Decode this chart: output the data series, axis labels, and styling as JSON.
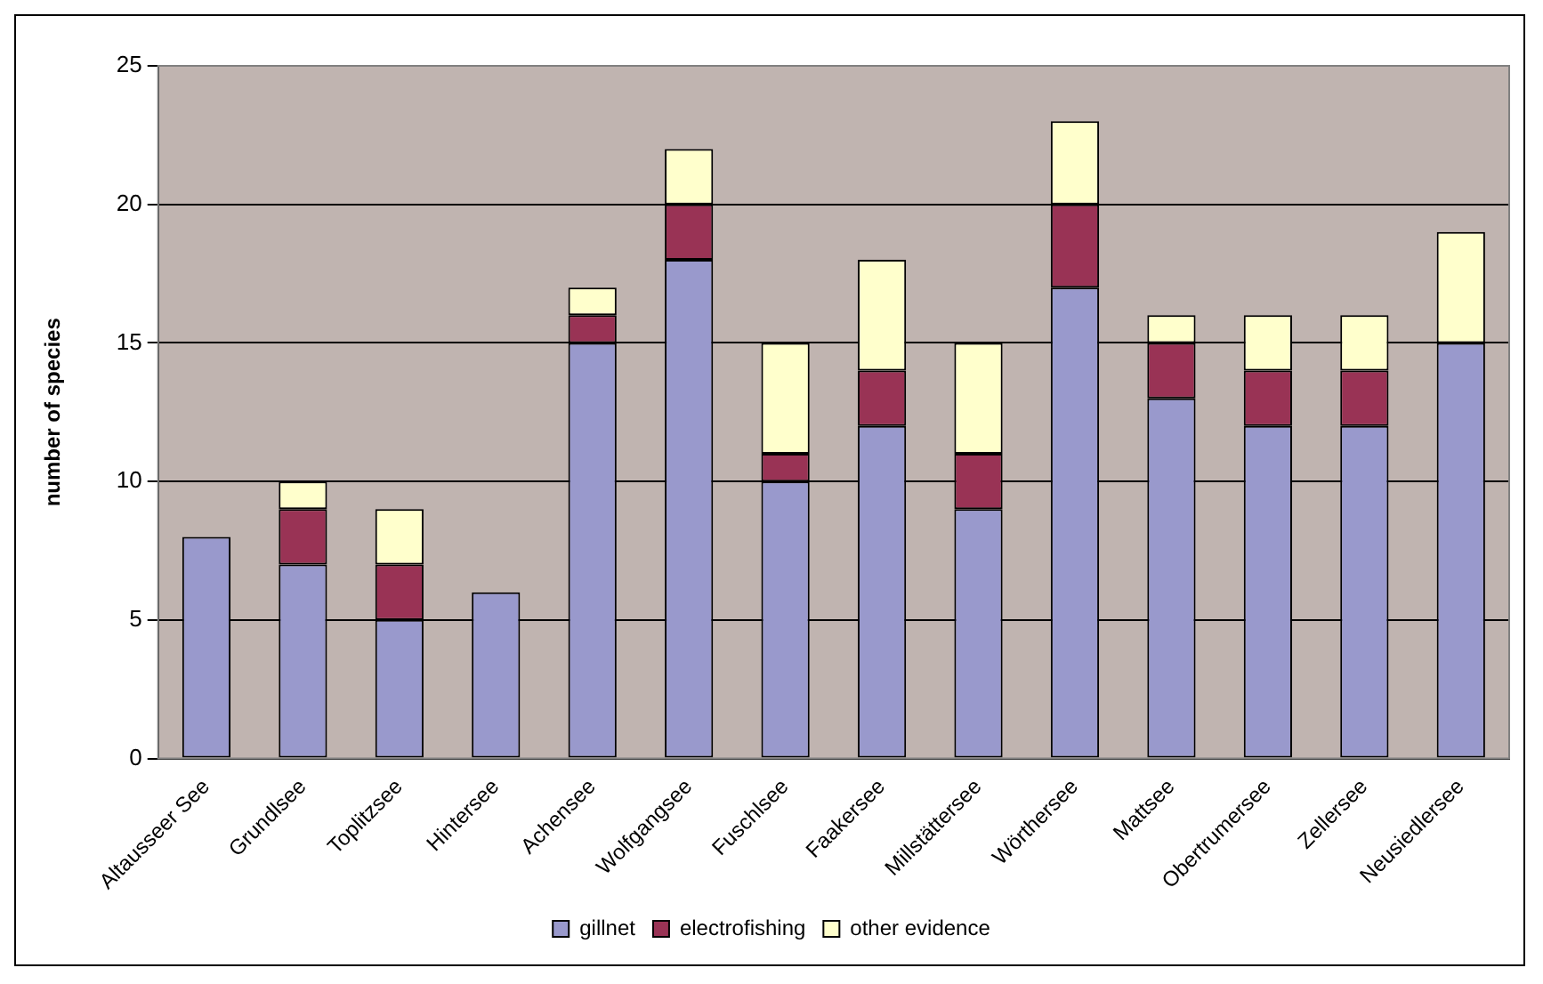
{
  "chart_data": {
    "type": "bar",
    "stacked": true,
    "ylabel": "number of species",
    "categories": [
      "Altausseer See",
      "Grundlsee",
      "Toplitzsee",
      "Hintersee",
      "Achensee",
      "Wolfgangsee",
      "Fuschlsee",
      "Faakersee",
      "Millstättersee",
      "Wörthersee",
      "Mattsee",
      "Obertrumersee",
      "Zellersee",
      "Neusiedlersee"
    ],
    "series": [
      {
        "name": "gillnet",
        "color": "#9999cc",
        "values": [
          8,
          7,
          5,
          6,
          15,
          18,
          10,
          12,
          9,
          17,
          13,
          12,
          12,
          15
        ]
      },
      {
        "name": "electrofishing",
        "color": "#993355",
        "values": [
          0,
          2,
          2,
          0,
          1,
          2,
          1,
          2,
          2,
          3,
          2,
          2,
          2,
          0
        ]
      },
      {
        "name": "other evidence",
        "color": "#ffffcc",
        "values": [
          0,
          1,
          2,
          0,
          1,
          2,
          4,
          4,
          4,
          3,
          1,
          2,
          2,
          4
        ]
      }
    ],
    "ylim": [
      0,
      25
    ],
    "yticks": [
      0,
      5,
      10,
      15,
      20,
      25
    ],
    "grid": "y",
    "legend": "bottom"
  }
}
